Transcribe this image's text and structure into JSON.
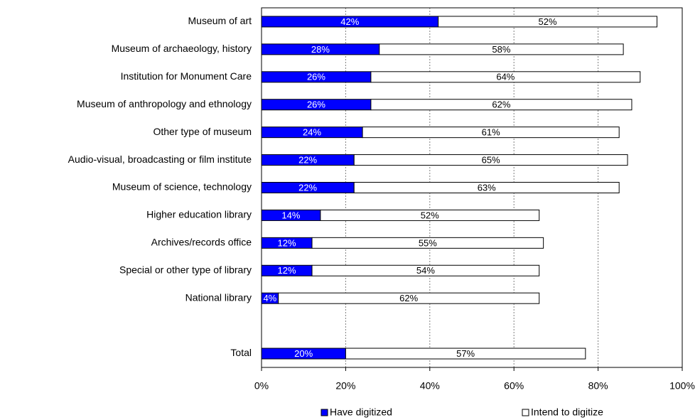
{
  "chart_data": {
    "type": "stacked_barh",
    "categories": [
      "Museum of art",
      "Museum of archaeology, history",
      "Institution for Monument Care",
      "Museum of anthropology and ethnology",
      "Other type of museum",
      "Audio-visual, broadcasting or film institute",
      "Museum of science, technology",
      "Higher education library",
      "Archives/records office",
      "Special or other type of library",
      "National library",
      null,
      "Total"
    ],
    "series": [
      {
        "name": "Have digitized",
        "color": "#0000ff",
        "values": [
          42,
          28,
          26,
          26,
          24,
          22,
          22,
          14,
          12,
          12,
          4,
          null,
          20
        ],
        "value_labels": [
          "42%",
          "28%",
          "26%",
          "26%",
          "24%",
          "22%",
          "22%",
          "14%",
          "12%",
          "12%",
          "4%",
          null,
          "20%"
        ]
      },
      {
        "name": "Intend to digitize",
        "color": "#ffffff",
        "values": [
          52,
          58,
          64,
          62,
          61,
          65,
          63,
          52,
          55,
          54,
          62,
          null,
          57
        ],
        "value_labels": [
          "52%",
          "58%",
          "64%",
          "62%",
          "61%",
          "65%",
          "63%",
          "52%",
          "55%",
          "54%",
          "62%",
          null,
          "57%"
        ]
      }
    ],
    "xlim": [
      0,
      100
    ],
    "xticks": [
      {
        "value": 0,
        "label": "0%"
      },
      {
        "value": 20,
        "label": "20%"
      },
      {
        "value": 40,
        "label": "40%"
      },
      {
        "value": 60,
        "label": "60%"
      },
      {
        "value": 80,
        "label": "80%"
      },
      {
        "value": 100,
        "label": "100%"
      }
    ],
    "grid": true,
    "legend": "bottom"
  }
}
